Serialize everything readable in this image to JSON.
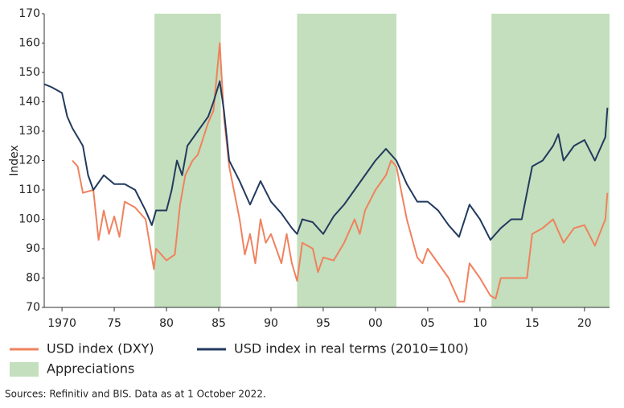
{
  "chart_data": {
    "type": "line",
    "y_label": "Index",
    "source": "Sources: Refinitiv and BIS. Data as at 1 October 2022.",
    "shading_name": "Appreciations",
    "shading_color": "#c3dfbd",
    "shading": [
      [
        1978.85,
        1985.2
      ],
      [
        1992.5,
        2002.0
      ],
      [
        2011.1,
        2022.4
      ]
    ],
    "xlim": [
      1968.3,
      2022.4
    ],
    "xticks": [
      1970,
      {
        "value": 1975,
        "label": "75"
      },
      {
        "value": 1980,
        "label": "80"
      },
      {
        "value": 1985,
        "label": "85"
      },
      {
        "value": 1990,
        "label": "90"
      },
      {
        "value": 1995,
        "label": "95"
      },
      {
        "value": 2000,
        "label": "00"
      },
      {
        "value": 2005,
        "label": "05"
      },
      {
        "value": 2010,
        "label": "10"
      },
      {
        "value": 2015,
        "label": "15"
      },
      {
        "value": 2020,
        "label": "20"
      }
    ],
    "ylim": [
      70,
      170
    ],
    "yticks": [
      70,
      80,
      90,
      100,
      110,
      120,
      130,
      140,
      150,
      160,
      170
    ],
    "series": [
      {
        "name": "USD index (DXY)",
        "color": "#f0825e",
        "x": [
          1971,
          1971.5,
          1972,
          1973,
          1973.5,
          1974,
          1974.5,
          1975,
          1975.5,
          1976,
          1977,
          1978,
          1978.8,
          1979,
          1980,
          1980.8,
          1981.3,
          1981.8,
          1982.5,
          1983,
          1984,
          1984.5,
          1985.1,
          1985.5,
          1986,
          1987,
          1987.5,
          1988,
          1988.5,
          1989,
          1989.5,
          1990,
          1991,
          1991.5,
          1992,
          1992.5,
          1993,
          1994,
          1994.5,
          1995,
          1996,
          1997,
          1998,
          1998.5,
          1999,
          2000,
          2001,
          2001.5,
          2002,
          2003,
          2004,
          2004.5,
          2005,
          2006,
          2007,
          2008,
          2008.5,
          2009,
          2010,
          2011,
          2011.5,
          2012,
          2013,
          2014,
          2014.5,
          2015,
          2016,
          2017,
          2018,
          2019,
          2020,
          2021,
          2022,
          2022.2
        ],
        "values": [
          120,
          118,
          109,
          110,
          93,
          103,
          95,
          101,
          94,
          106,
          104,
          100,
          83,
          90,
          86,
          88,
          105,
          115,
          120,
          122,
          133,
          137,
          160,
          135,
          118,
          100,
          88,
          95,
          85,
          100,
          92,
          95,
          85,
          95,
          85,
          79,
          92,
          90,
          82,
          87,
          86,
          92,
          100,
          95,
          103,
          110,
          115,
          120,
          118,
          100,
          87,
          85,
          90,
          85,
          80,
          72,
          72,
          85,
          80,
          74,
          73,
          80,
          80,
          80,
          80,
          95,
          97,
          100,
          92,
          97,
          98,
          91,
          100,
          109
        ]
      },
      {
        "name": "USD index in real terms (2010=100)",
        "color": "#233a5e",
        "x": [
          1968.3,
          1969,
          1970,
          1970.5,
          1971,
          1972,
          1972.5,
          1973,
          1974,
          1975,
          1976,
          1977,
          1978,
          1978.6,
          1979,
          1980,
          1980.5,
          1981,
          1981.5,
          1982,
          1983,
          1984,
          1984.5,
          1985.1,
          1985.5,
          1986,
          1987,
          1988,
          1989,
          1990,
          1991,
          1992,
          1992.5,
          1993,
          1994,
          1995,
          1996,
          1997,
          1998,
          1999,
          2000,
          2001,
          2002,
          2003,
          2004,
          2005,
          2006,
          2007,
          2008,
          2009,
          2010,
          2011,
          2012,
          2013,
          2014,
          2015,
          2016,
          2017,
          2017.5,
          2018,
          2019,
          2020,
          2021,
          2022,
          2022.2
        ],
        "values": [
          146,
          145,
          143,
          135,
          131,
          125,
          115,
          110,
          115,
          112,
          112,
          110,
          103,
          98,
          103,
          103,
          110,
          120,
          115,
          125,
          130,
          135,
          140,
          147,
          137,
          120,
          113,
          105,
          113,
          106,
          102,
          97,
          95,
          100,
          99,
          95,
          101,
          105,
          110,
          115,
          120,
          124,
          120,
          112,
          106,
          106,
          103,
          98,
          94,
          105,
          100,
          93,
          97,
          100,
          100,
          118,
          120,
          125,
          129,
          120,
          125,
          127,
          120,
          128,
          138
        ]
      }
    ]
  }
}
